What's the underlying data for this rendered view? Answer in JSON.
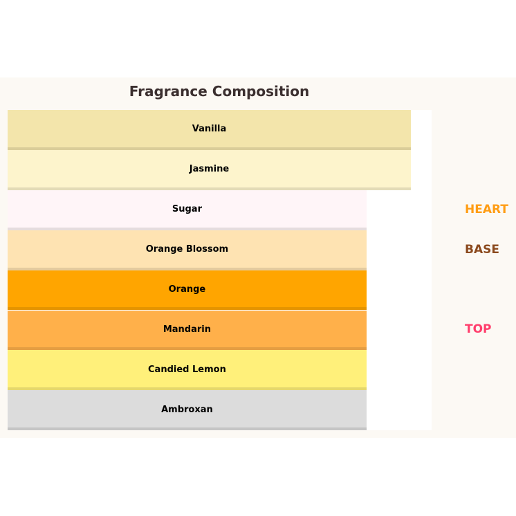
{
  "chart_data": {
    "type": "bar",
    "orientation": "horizontal-stacked-layers",
    "title": "Fragrance Composition",
    "categories": [
      "Vanilla",
      "Jasmine",
      "Sugar",
      "Orange Blossom",
      "Orange",
      "Mandarin",
      "Candied Lemon",
      "Ambroxan"
    ],
    "relative_length": [
      1.0,
      1.0,
      0.89,
      0.89,
      0.89,
      0.89,
      0.89,
      0.89
    ],
    "colors": [
      "#f3e5ab",
      "#fdf4cc",
      "#fff5f8",
      "#fee3b2",
      "#ffa500",
      "#ffb04a",
      "#fff07a",
      "#dcdcdc"
    ],
    "legend": [
      {
        "label": "HEART",
        "color": "#ff9d14"
      },
      {
        "label": "BASE",
        "color": "#8b4a1e"
      },
      {
        "label": "TOP",
        "color": "#ff3e6c"
      }
    ],
    "grid": false,
    "legend_position": "right"
  }
}
